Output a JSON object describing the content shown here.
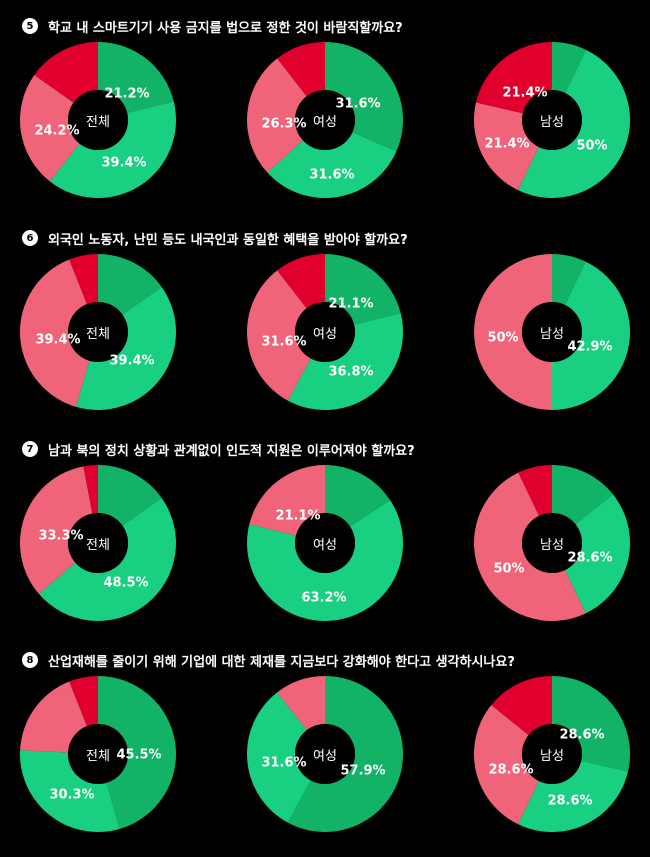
{
  "colors": {
    "dark_green": "#12b367",
    "light_green": "#19cf82",
    "pink": "#f0647a",
    "red": "#e1002d",
    "background": "#000000"
  },
  "chart_data": [
    {
      "type": "pie",
      "question_number": "5",
      "question": "학교 내 스마트기기 사용 금지를 법으로 정한 것이 바람직할까요?",
      "donuts": [
        {
          "center": "전체",
          "slices": [
            {
              "color": "dark_green",
              "value": 21.2,
              "label": "21.2%"
            },
            {
              "color": "light_green",
              "value": 39.4,
              "label": "39.4%"
            },
            {
              "color": "pink",
              "value": 24.2,
              "label": "24.2%"
            },
            {
              "color": "red",
              "value": 15.2,
              "label": ""
            }
          ]
        },
        {
          "center": "여성",
          "slices": [
            {
              "color": "dark_green",
              "value": 31.6,
              "label": "31.6%"
            },
            {
              "color": "light_green",
              "value": 31.6,
              "label": "31.6%"
            },
            {
              "color": "pink",
              "value": 26.3,
              "label": "26.3%"
            },
            {
              "color": "red",
              "value": 10.5,
              "label": ""
            }
          ]
        },
        {
          "center": "남성",
          "slices": [
            {
              "color": "dark_green",
              "value": 7.2,
              "label": ""
            },
            {
              "color": "light_green",
              "value": 50,
              "label": "50%"
            },
            {
              "color": "pink",
              "value": 21.4,
              "label": "21.4%"
            },
            {
              "color": "red",
              "value": 21.4,
              "label": "21.4%"
            }
          ]
        }
      ]
    },
    {
      "type": "pie",
      "question_number": "6",
      "question": "외국인 노동자, 난민 등도 내국인과 동일한 혜택을 받아야 할까요?",
      "donuts": [
        {
          "center": "전체",
          "slices": [
            {
              "color": "dark_green",
              "value": 15.2,
              "label": ""
            },
            {
              "color": "light_green",
              "value": 39.4,
              "label": "39.4%"
            },
            {
              "color": "pink",
              "value": 39.4,
              "label": "39.4%"
            },
            {
              "color": "red",
              "value": 6,
              "label": ""
            }
          ]
        },
        {
          "center": "여성",
          "slices": [
            {
              "color": "dark_green",
              "value": 21.1,
              "label": "21.1%"
            },
            {
              "color": "light_green",
              "value": 36.8,
              "label": "36.8%"
            },
            {
              "color": "pink",
              "value": 31.6,
              "label": "31.6%"
            },
            {
              "color": "red",
              "value": 10.5,
              "label": ""
            }
          ]
        },
        {
          "center": "남성",
          "slices": [
            {
              "color": "dark_green",
              "value": 7.1,
              "label": ""
            },
            {
              "color": "light_green",
              "value": 42.9,
              "label": "42.9%"
            },
            {
              "color": "pink",
              "value": 50,
              "label": "50%"
            }
          ]
        }
      ]
    },
    {
      "type": "pie",
      "question_number": "7",
      "question": "남과 북의 정치 상황과 관계없이 인도적 지원은 이루어져야 할까요?",
      "donuts": [
        {
          "center": "전체",
          "slices": [
            {
              "color": "dark_green",
              "value": 15.2,
              "label": ""
            },
            {
              "color": "light_green",
              "value": 48.5,
              "label": "48.5%"
            },
            {
              "color": "pink",
              "value": 33.3,
              "label": "33.3%"
            },
            {
              "color": "red",
              "value": 3,
              "label": ""
            }
          ]
        },
        {
          "center": "여성",
          "slices": [
            {
              "color": "dark_green",
              "value": 15.7,
              "label": ""
            },
            {
              "color": "light_green",
              "value": 63.2,
              "label": "63.2%"
            },
            {
              "color": "pink",
              "value": 21.1,
              "label": "21.1%"
            }
          ]
        },
        {
          "center": "남성",
          "slices": [
            {
              "color": "dark_green",
              "value": 14.3,
              "label": ""
            },
            {
              "color": "light_green",
              "value": 28.6,
              "label": "28.6%"
            },
            {
              "color": "pink",
              "value": 50,
              "label": "50%"
            },
            {
              "color": "red",
              "value": 7.1,
              "label": ""
            }
          ]
        }
      ]
    },
    {
      "type": "pie",
      "question_number": "8",
      "question": "산업재해를 줄이기 위해 기업에 대한 제재를 지금보다 강화해야 한다고 생각하시나요?",
      "donuts": [
        {
          "center": "전체",
          "slices": [
            {
              "color": "dark_green",
              "value": 45.5,
              "label": "45.5%"
            },
            {
              "color": "light_green",
              "value": 30.3,
              "label": "30.3%"
            },
            {
              "color": "pink",
              "value": 18.2,
              "label": ""
            },
            {
              "color": "red",
              "value": 6,
              "label": ""
            }
          ]
        },
        {
          "center": "여성",
          "slices": [
            {
              "color": "dark_green",
              "value": 57.9,
              "label": "57.9%"
            },
            {
              "color": "light_green",
              "value": 31.6,
              "label": "31.6%"
            },
            {
              "color": "pink",
              "value": 10.5,
              "label": ""
            }
          ]
        },
        {
          "center": "남성",
          "slices": [
            {
              "color": "dark_green",
              "value": 28.6,
              "label": "28.6%"
            },
            {
              "color": "light_green",
              "value": 28.6,
              "label": "28.6%"
            },
            {
              "color": "pink",
              "value": 28.6,
              "label": "28.6%"
            },
            {
              "color": "red",
              "value": 14.2,
              "label": ""
            }
          ]
        }
      ]
    }
  ]
}
